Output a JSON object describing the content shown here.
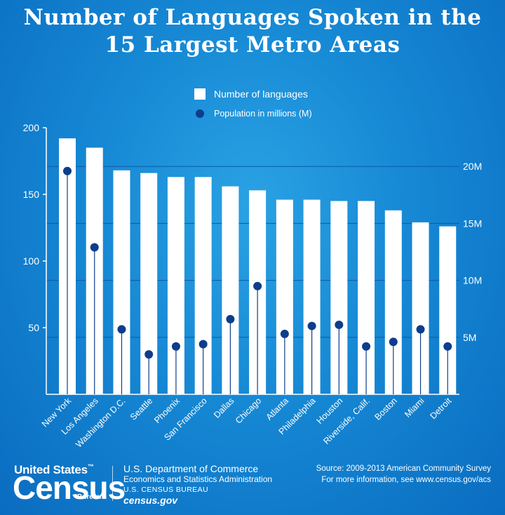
{
  "title_line1": "Number of Languages Spoken in the",
  "title_line2": "15 Largest Metro Areas",
  "legend": {
    "bars": "Number of languages",
    "dots": "Population in millions (M)"
  },
  "colors": {
    "bar": "#ffffff",
    "dot": "#0d3d8c",
    "axis": "#ffffff",
    "gridline": "#0d5aa8"
  },
  "chart_data": {
    "type": "bar",
    "categories": [
      "New York",
      "Los Angeles",
      "Washington D.C.",
      "Seattle",
      "Phoenix",
      "San Francisco",
      "Dallas",
      "Chicago",
      "Atlanta",
      "Philadelphia",
      "Houston",
      "Riverside, Calif.",
      "Boston",
      "Miami",
      "Detroit"
    ],
    "series": [
      {
        "name": "Number of languages",
        "axis": "left",
        "values": [
          192,
          185,
          168,
          166,
          163,
          163,
          156,
          153,
          146,
          146,
          145,
          145,
          138,
          129,
          126
        ]
      },
      {
        "name": "Population in millions (M)",
        "axis": "right",
        "values": [
          19.6,
          12.9,
          5.7,
          3.5,
          4.2,
          4.4,
          6.6,
          9.5,
          5.3,
          6.0,
          6.1,
          4.2,
          4.6,
          5.7,
          4.2
        ]
      }
    ],
    "ylim_left": [
      0,
      200
    ],
    "yticks_left": [
      50,
      100,
      150,
      200
    ],
    "ylim_right": [
      0,
      23.4
    ],
    "yticks_right": [
      "5M",
      "10M",
      "15M",
      "20M"
    ],
    "yticks_right_values": [
      5,
      10,
      15,
      20
    ]
  },
  "footer": {
    "logo_line1": "United States",
    "logo_tm": "™",
    "logo_big": "Census",
    "logo_bureau": "Bureau",
    "dept_line1": "U.S. Department of Commerce",
    "dept_line2": "Economics and Statistics Administration",
    "dept_line3": "U.S. CENSUS BUREAU",
    "dept_line4": "census.gov",
    "source_line1": "Source: 2009-2013 American Community Survey",
    "source_line2": "For more information, see www.census.gov/acs"
  }
}
